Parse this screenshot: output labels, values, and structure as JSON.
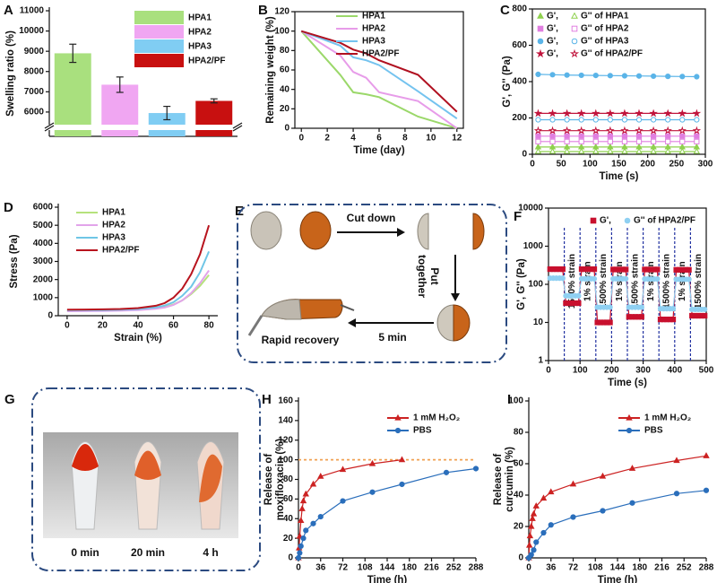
{
  "chart_data": [
    {
      "type": "bar",
      "label": "A",
      "ylabel": "Swelling ratio (%)",
      "categories": [
        "HPA1",
        "HPA2",
        "HPA3",
        "HPA2/PF"
      ],
      "values": [
        8900,
        7350,
        5950,
        6550
      ],
      "errors": [
        450,
        380,
        330,
        100
      ],
      "colors": [
        "#a9e07e",
        "#f0a6f2",
        "#80cdf3",
        "#c81010"
      ],
      "ylim": [
        4800,
        11000
      ],
      "yticks": [
        6000,
        7000,
        8000,
        9000,
        10000,
        11000
      ],
      "axis_break": true
    },
    {
      "type": "line",
      "label": "B",
      "xlabel": "Time (day)",
      "ylabel": "Remaining weight (%)",
      "x": [
        0,
        3,
        4,
        5,
        6,
        9,
        12
      ],
      "xlim": [
        -0.5,
        12.5
      ],
      "xticks": [
        0,
        2,
        4,
        6,
        8,
        10,
        12
      ],
      "ylim": [
        0,
        120
      ],
      "yticks": [
        0,
        20,
        40,
        60,
        80,
        100,
        120
      ],
      "series": [
        {
          "name": "HPA1",
          "color": "#9bd86a",
          "values": [
            100,
            55,
            37,
            35,
            32,
            12,
            0
          ]
        },
        {
          "name": "HPA2",
          "color": "#e79ce9",
          "values": [
            100,
            75,
            58,
            52,
            37,
            28,
            0
          ]
        },
        {
          "name": "HPA3",
          "color": "#74c3ef",
          "values": [
            100,
            85,
            73,
            70,
            65,
            38,
            10
          ]
        },
        {
          "name": "HPA2/PF",
          "color": "#b01020",
          "values": [
            100,
            88,
            81,
            77,
            70,
            55,
            17
          ]
        }
      ]
    },
    {
      "type": "line",
      "label": "C",
      "xlabel": "Time (s)",
      "ylabel": "G', G'' (Pa)",
      "x": [
        10,
        35,
        60,
        85,
        110,
        135,
        160,
        185,
        210,
        235,
        260,
        285
      ],
      "xlim": [
        0,
        300
      ],
      "xticks": [
        0,
        50,
        100,
        150,
        200,
        250,
        300
      ],
      "ylim": [
        0,
        800
      ],
      "yticks": [
        0,
        200,
        400,
        600,
        800
      ],
      "series": [
        {
          "name": "G',",
          "color": "#8fd14f",
          "marker": "triangle",
          "values": [
            40,
            40,
            40,
            40,
            40,
            40,
            40,
            40,
            40,
            40,
            40,
            40
          ]
        },
        {
          "name": "G'' of HPA1",
          "color": "#8fd14f",
          "marker": "triangle",
          "hollow": true,
          "values": [
            15,
            15,
            15,
            15,
            15,
            15,
            15,
            15,
            15,
            15,
            15,
            15
          ]
        },
        {
          "name": "G',",
          "color": "#e07fe0",
          "marker": "square",
          "values": [
            100,
            100,
            100,
            100,
            100,
            100,
            100,
            100,
            100,
            100,
            100,
            100
          ]
        },
        {
          "name": "G'' of HPA2",
          "color": "#e07fe0",
          "marker": "square",
          "hollow": true,
          "values": [
            70,
            70,
            70,
            70,
            70,
            70,
            70,
            70,
            70,
            70,
            70,
            70
          ]
        },
        {
          "name": "G',",
          "color": "#5ab4e8",
          "marker": "circle",
          "values": [
            440,
            438,
            436,
            435,
            434,
            433,
            432,
            431,
            430,
            429,
            428,
            427
          ]
        },
        {
          "name": "G'' of HPA3",
          "color": "#5ab4e8",
          "marker": "circle",
          "hollow": true,
          "values": [
            190,
            190,
            190,
            190,
            190,
            190,
            190,
            190,
            190,
            190,
            190,
            190
          ]
        },
        {
          "name": "G',",
          "color": "#c0143c",
          "marker": "star",
          "values": [
            225,
            225,
            225,
            225,
            225,
            225,
            225,
            225,
            225,
            225,
            225,
            225
          ]
        },
        {
          "name": "G'' of HPA2/PF",
          "color": "#c0143c",
          "marker": "star",
          "hollow": true,
          "values": [
            130,
            130,
            130,
            130,
            130,
            130,
            130,
            130,
            130,
            130,
            130,
            130
          ]
        }
      ]
    },
    {
      "type": "line",
      "label": "D",
      "xlabel": "Strain (%)",
      "ylabel": "Stress (Pa)",
      "x": [
        0,
        10,
        20,
        30,
        40,
        50,
        55,
        60,
        65,
        70,
        75,
        80
      ],
      "xlim": [
        -5,
        85
      ],
      "xticks": [
        0,
        20,
        40,
        60,
        80
      ],
      "ylim": [
        0,
        6000
      ],
      "yticks": [
        0,
        1000,
        2000,
        3000,
        4000,
        5000,
        6000
      ],
      "series": [
        {
          "name": "HPA1",
          "color": "#b5e27c",
          "values": [
            280,
            285,
            290,
            300,
            330,
            400,
            480,
            620,
            850,
            1200,
            1650,
            2250
          ]
        },
        {
          "name": "HPA2",
          "color": "#e2a4ea",
          "values": [
            250,
            255,
            265,
            280,
            310,
            380,
            450,
            600,
            850,
            1250,
            1800,
            2500
          ]
        },
        {
          "name": "HPA3",
          "color": "#6fc6e6",
          "values": [
            300,
            305,
            310,
            330,
            370,
            460,
            560,
            750,
            1100,
            1600,
            2400,
            3550
          ]
        },
        {
          "name": "HPA2/PF",
          "color": "#b8141e",
          "values": [
            330,
            340,
            350,
            370,
            420,
            550,
            700,
            1000,
            1500,
            2300,
            3400,
            5000
          ]
        }
      ]
    },
    {
      "type": "line",
      "label": "F",
      "xlabel": "Time (s)",
      "ylabel": "G', G'' (Pa)",
      "ylog": true,
      "x": [
        5,
        15,
        25,
        35,
        45,
        55,
        65,
        75,
        85,
        95,
        105,
        115,
        125,
        135,
        145,
        155,
        165,
        175,
        185,
        195,
        205,
        215,
        225,
        235,
        245,
        255,
        265,
        275,
        285,
        295,
        305,
        315,
        325,
        335,
        345,
        355,
        365,
        375,
        385,
        395,
        405,
        415,
        425,
        435,
        445,
        455,
        465,
        475,
        485,
        495
      ],
      "xlim": [
        0,
        500
      ],
      "xticks": [
        0,
        100,
        200,
        300,
        400,
        500
      ],
      "ylim": [
        1,
        10000
      ],
      "yticks": [
        1,
        10,
        100,
        1000,
        10000
      ],
      "dividers": [
        50,
        100,
        150,
        200,
        250,
        300,
        350,
        400,
        450
      ],
      "segment_labels": [
        "1500% strain",
        "1% strain",
        "1500% strain",
        "1% strain",
        "1500% strain",
        "1% strain",
        "1500% strain",
        "1% strain",
        "1500% strain"
      ],
      "series": [
        {
          "name": "G',",
          "color": "#c8102e",
          "marker": "square",
          "values": [
            250,
            250,
            250,
            250,
            250,
            32,
            32,
            32,
            32,
            32,
            250,
            250,
            250,
            250,
            250,
            10,
            10,
            10,
            10,
            10,
            245,
            245,
            245,
            245,
            245,
            14,
            14,
            14,
            14,
            14,
            245,
            245,
            245,
            245,
            245,
            12,
            12,
            12,
            12,
            12,
            240,
            240,
            240,
            240,
            240,
            15,
            15,
            15,
            15,
            15
          ]
        },
        {
          "name": "G'' of HPA2/PF",
          "color": "#8fd0f2",
          "marker": "circle",
          "values": [
            145,
            145,
            145,
            145,
            145,
            50,
            50,
            50,
            50,
            50,
            140,
            140,
            140,
            140,
            140,
            25,
            25,
            25,
            25,
            25,
            140,
            140,
            140,
            140,
            140,
            25,
            25,
            25,
            25,
            25,
            138,
            138,
            138,
            138,
            138,
            23,
            23,
            23,
            23,
            23,
            135,
            135,
            135,
            135,
            135,
            22,
            22,
            22,
            22,
            22
          ]
        }
      ]
    },
    {
      "type": "line",
      "label": "H",
      "xlabel": "Time (h)",
      "ylabel": [
        "Release of",
        "moxifloxacin (%)"
      ],
      "xlim": [
        0,
        288
      ],
      "xticks": [
        0,
        36,
        72,
        108,
        144,
        180,
        216,
        252,
        288
      ],
      "ylim": [
        0,
        160
      ],
      "yticks": [
        0,
        20,
        40,
        60,
        80,
        100,
        120,
        140,
        160
      ],
      "reference": 100,
      "reference_color": "#f0a050",
      "series": [
        {
          "name": "1 mM H₂O₂",
          "color": "#cc2222",
          "marker": "triangle",
          "x": [
            0,
            1,
            2,
            4,
            6,
            8,
            12,
            24,
            36,
            72,
            120,
            168
          ],
          "values": [
            0,
            10,
            22,
            38,
            50,
            58,
            65,
            75,
            83,
            90,
            96,
            100
          ]
        },
        {
          "name": "PBS",
          "color": "#2a6ebb",
          "marker": "circle",
          "x": [
            0,
            2,
            4,
            8,
            12,
            24,
            36,
            72,
            120,
            168,
            240,
            288
          ],
          "values": [
            0,
            5,
            12,
            20,
            28,
            35,
            42,
            58,
            67,
            75,
            87,
            91
          ]
        }
      ]
    },
    {
      "type": "line",
      "label": "I",
      "xlabel": "Time (h)",
      "ylabel": [
        "Release of",
        "curcumin (%)"
      ],
      "xlim": [
        0,
        288
      ],
      "xticks": [
        0,
        36,
        72,
        108,
        144,
        180,
        216,
        252,
        288
      ],
      "ylim": [
        0,
        100
      ],
      "yticks": [
        0,
        20,
        40,
        60,
        80,
        100
      ],
      "series": [
        {
          "name": "1 mM H₂O₂",
          "color": "#cc2222",
          "marker": "triangle",
          "x": [
            0,
            1,
            2,
            4,
            6,
            8,
            12,
            24,
            36,
            72,
            120,
            168,
            240,
            288
          ],
          "values": [
            0,
            8,
            14,
            20,
            25,
            28,
            33,
            38,
            42,
            47,
            52,
            57,
            62,
            65
          ]
        },
        {
          "name": "PBS",
          "color": "#2a6ebb",
          "marker": "circle",
          "x": [
            0,
            4,
            8,
            12,
            24,
            36,
            72,
            120,
            168,
            240,
            288
          ],
          "values": [
            0,
            2,
            5,
            10,
            16,
            21,
            26,
            30,
            35,
            41,
            43
          ]
        }
      ]
    }
  ],
  "diagrams": [
    {
      "label": "E",
      "steps": [
        "Cut down",
        [
          "Put",
          "together"
        ],
        "5 min",
        "Rapid recovery"
      ]
    },
    {
      "label": "G",
      "times": [
        "0 min",
        "20 min",
        "4 h"
      ]
    }
  ]
}
